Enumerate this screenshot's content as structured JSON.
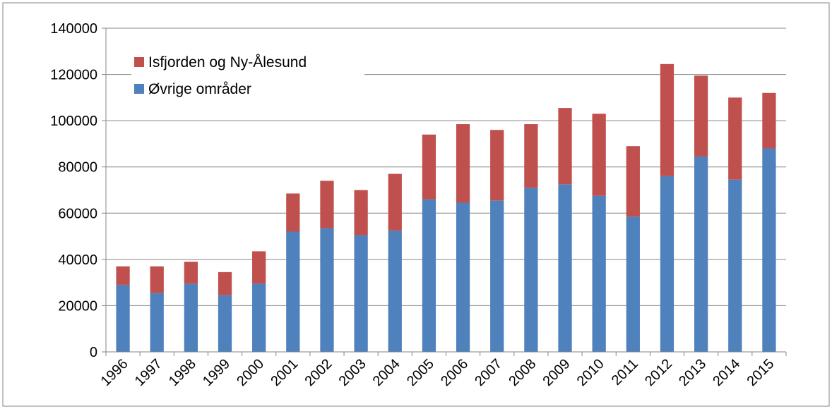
{
  "colors": {
    "isfjorden": "#C0504D",
    "ovrige": "#4F81BD",
    "grid": "#868686",
    "border": "#868686"
  },
  "chart_data": {
    "type": "bar",
    "stacked": true,
    "categories": [
      "1996",
      "1997",
      "1998",
      "1999",
      "2000",
      "2001",
      "2002",
      "2003",
      "2004",
      "2005",
      "2006",
      "2007",
      "2008",
      "2009",
      "2010",
      "2011",
      "2012",
      "2013",
      "2014",
      "2015"
    ],
    "series": [
      {
        "name": "Øvrige områder",
        "color": "#4F81BD",
        "values": [
          29000,
          25500,
          29500,
          24500,
          29500,
          52000,
          53500,
          50500,
          52500,
          66000,
          64500,
          65500,
          71000,
          72500,
          67500,
          58500,
          76000,
          84500,
          74500,
          88000
        ]
      },
      {
        "name": "Isfjorden og Ny-Ålesund",
        "color": "#C0504D",
        "values": [
          8000,
          11500,
          9500,
          10000,
          14000,
          16500,
          20500,
          19500,
          24500,
          28000,
          34000,
          30500,
          27500,
          33000,
          35500,
          30500,
          48500,
          35000,
          35500,
          24000
        ]
      }
    ],
    "ylim": [
      0,
      140000
    ],
    "yticks": [
      "0",
      "20000",
      "40000",
      "60000",
      "80000",
      "100000",
      "120000",
      "140000"
    ],
    "grid": true,
    "legend_position": "top-left"
  }
}
